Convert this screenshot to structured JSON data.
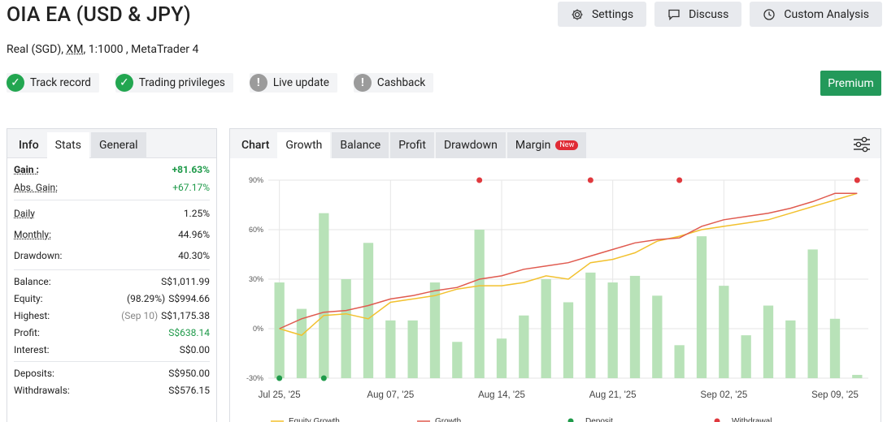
{
  "header": {
    "title": "OIA EA (USD & JPY)",
    "account_type": "Real (SGD),",
    "broker": "XM",
    "leverage": ", 1:1000 , ",
    "platform": "MetaTrader 4"
  },
  "top_buttons": {
    "settings": "Settings",
    "discuss": "Discuss",
    "custom_analysis": "Custom Analysis"
  },
  "badges": [
    {
      "label": "Track record",
      "status": "ok"
    },
    {
      "label": "Trading privileges",
      "status": "ok"
    },
    {
      "label": "Live update",
      "status": "warn"
    },
    {
      "label": "Cashback",
      "status": "warn"
    }
  ],
  "premium_label": "Premium",
  "left_tabs": {
    "info": "Info",
    "stats": "Stats",
    "general": "General"
  },
  "stats": {
    "gain": {
      "label": "Gain :",
      "value": "+81.63%"
    },
    "abs_gain": {
      "label": "Abs. Gain:",
      "value": "+67.17%"
    },
    "daily": {
      "label": "Daily",
      "value": "1.25%"
    },
    "monthly": {
      "label": "Monthly:",
      "value": "44.96%"
    },
    "drawdown": {
      "label": "Drawdown:",
      "value": "40.30%"
    },
    "balance": {
      "label": "Balance:",
      "value": "S$1,011.99"
    },
    "equity": {
      "label": "Equity:",
      "note": "(98.29%)",
      "value": "S$994.66"
    },
    "highest": {
      "label": "Highest:",
      "note": "(Sep 10)",
      "value": "S$1,175.38"
    },
    "profit": {
      "label": "Profit:",
      "value": "S$638.14"
    },
    "interest": {
      "label": "Interest:",
      "value": "S$0.00"
    },
    "deposits": {
      "label": "Deposits:",
      "value": "S$950.00"
    },
    "withdrawals": {
      "label": "Withdrawals:",
      "value": "S$576.15"
    }
  },
  "chart_tabs": {
    "chart": "Chart",
    "growth": "Growth",
    "balance": "Balance",
    "profit": "Profit",
    "drawdown": "Drawdown",
    "margin": "Margin",
    "new_tag": "New"
  },
  "colors": {
    "green": "#1f9a4a",
    "premium": "#23995a",
    "growth": "#e05a4f",
    "equity": "#f2c12e",
    "bar": "#b8e2b8"
  },
  "chart_data": {
    "type": "bar",
    "y_ticks": [
      "90%",
      "60%",
      "30%",
      "0%",
      "-30%"
    ],
    "ylim": [
      -30,
      90
    ],
    "x_tick_labels": [
      "Jul 25, '25",
      "Aug 07, '25",
      "Aug 14, '25",
      "Aug 21, '25",
      "Sep 02, '25",
      "Sep 09, '25"
    ],
    "x_tick_index": [
      0,
      5,
      10,
      15,
      20,
      25
    ],
    "bars": [
      28,
      12,
      70,
      30,
      52,
      5,
      5,
      28,
      -8,
      60,
      -6,
      8,
      30,
      16,
      34,
      28,
      32,
      20,
      -10,
      56,
      26,
      -4,
      14,
      5,
      48,
      6,
      -28
    ],
    "series": [
      {
        "name": "Growth",
        "values": [
          0,
          6,
          10,
          11,
          14,
          18,
          20,
          23,
          25,
          30,
          32,
          36,
          38,
          40,
          44,
          48,
          52,
          54,
          55,
          62,
          66,
          68,
          70,
          73,
          77,
          82,
          82
        ]
      },
      {
        "name": "Equity Growth",
        "values": [
          0,
          -4,
          8,
          9,
          6,
          16,
          18,
          20,
          24,
          26,
          26,
          28,
          32,
          30,
          40,
          42,
          46,
          53,
          56,
          60,
          62,
          64,
          66,
          70,
          74,
          78,
          82
        ]
      }
    ],
    "deposit_index": [
      0,
      2
    ],
    "withdrawal_index": [
      9,
      14,
      18,
      26
    ],
    "legend": [
      "Equity Growth",
      "Growth",
      "Deposit",
      "Withdrawal"
    ]
  }
}
